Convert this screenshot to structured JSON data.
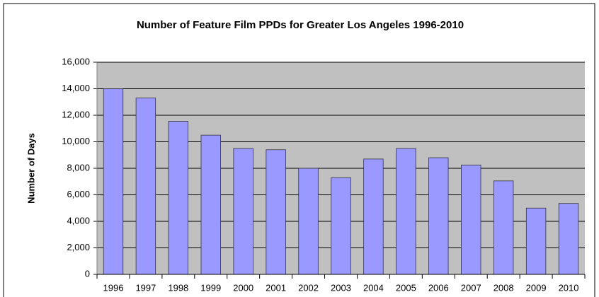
{
  "chart_data": {
    "type": "bar",
    "title": "Number of Feature Film PPDs for Greater Los Angeles 1996-2010",
    "y_label": "Number of Days",
    "categories": [
      "1996",
      "1997",
      "1998",
      "1999",
      "2000",
      "2001",
      "2002",
      "2003",
      "2004",
      "2005",
      "2006",
      "2007",
      "2008",
      "2009",
      "2010"
    ],
    "values": [
      14000,
      13300,
      11550,
      10500,
      9500,
      9400,
      8000,
      7300,
      8700,
      9500,
      8800,
      8250,
      7050,
      5000,
      5350
    ],
    "color": "#9999ff",
    "ylim": [
      0,
      16000
    ],
    "yticks": [
      0,
      {
        "value": 2000,
        "label": "2,000"
      },
      {
        "value": 4000,
        "label": "4,000"
      },
      {
        "value": 6000,
        "label": "6,000"
      },
      {
        "value": 8000,
        "label": "8,000"
      },
      {
        "value": 10000,
        "label": "10,000"
      },
      {
        "value": 12000,
        "label": "12,000"
      },
      {
        "value": 14000,
        "label": "14,000"
      },
      {
        "value": 16000,
        "label": "16,000"
      }
    ],
    "grid": true
  }
}
